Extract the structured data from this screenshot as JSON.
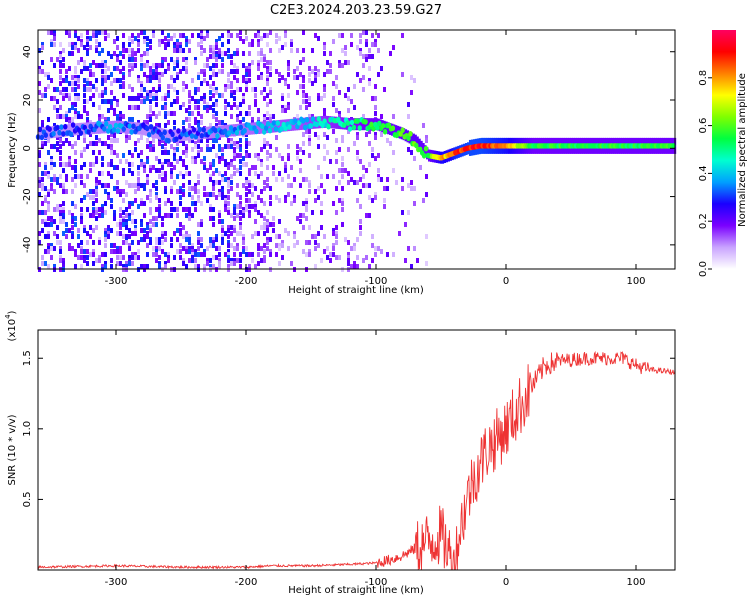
{
  "figure_title": "C2E3.2024.203.23.59.G27",
  "chart_data": [
    {
      "type": "heatmap",
      "title": "C2E3.2024.203.23.59.G27",
      "xlabel": "Height of straight line (km)",
      "ylabel": "Frequency (Hz)",
      "xlim": [
        -360,
        130
      ],
      "ylim": [
        -50,
        49
      ],
      "x_ticks": [
        -300,
        -200,
        -100,
        0,
        100
      ],
      "y_ticks": [
        40,
        20,
        0,
        -20,
        -40
      ],
      "x_tick_labels": [
        "-300",
        "-200",
        "-100",
        "0",
        "100"
      ],
      "y_tick_labels": [
        "40",
        "20",
        "0",
        "-20",
        "-40"
      ],
      "colorbar": {
        "label": "Normalized spectral amplitude",
        "range": [
          0,
          1
        ],
        "ticks": [
          0.0,
          0.2,
          0.4,
          0.6,
          0.8
        ],
        "tick_labels": [
          "0.0",
          "0.2",
          "0.4",
          "0.6",
          "0.8"
        ],
        "colormap": [
          "#ffffff",
          "#c9a3ff",
          "#7a00ff",
          "#1a00ff",
          "#00a0ff",
          "#00ffd0",
          "#00ff40",
          "#80ff00",
          "#ffff00",
          "#ff8000",
          "#ff0000",
          "#ff0060"
        ]
      },
      "ridge": {
        "x": [
          -360,
          -330,
          -300,
          -280,
          -260,
          -240,
          -220,
          -200,
          -180,
          -160,
          -140,
          -120,
          -100,
          -80,
          -70,
          -60,
          -50,
          -45,
          -40,
          -30,
          -20,
          -10,
          0,
          20,
          50,
          80,
          100,
          130
        ],
        "y": [
          6,
          8,
          9,
          8,
          5,
          6,
          7,
          8,
          9,
          10,
          11,
          10,
          10,
          6,
          3,
          -3,
          -4,
          -3,
          -2,
          0,
          1,
          1,
          1,
          1,
          1,
          1,
          1,
          1
        ],
        "amplitude": [
          0.3,
          0.3,
          0.35,
          0.3,
          0.3,
          0.3,
          0.35,
          0.35,
          0.4,
          0.4,
          0.45,
          0.5,
          0.55,
          0.6,
          0.6,
          0.55,
          0.8,
          0.75,
          0.85,
          0.9,
          0.9,
          0.85,
          0.8,
          0.55,
          0.55,
          0.55,
          0.55,
          0.55
        ]
      }
    },
    {
      "type": "line",
      "xlabel": "Height of straight line (km)",
      "ylabel": "SNR (10 * v/v)",
      "exponent_label": "(x10",
      "exponent_power": "4",
      "exponent_close": ")",
      "xlim": [
        -360,
        130
      ],
      "ylim": [
        0.0,
        1.7
      ],
      "x_ticks": [
        -300,
        -200,
        -100,
        0,
        100
      ],
      "y_ticks": [
        0.5,
        1.0,
        1.5
      ],
      "x_tick_labels": [
        "-300",
        "-200",
        "-100",
        "0",
        "100"
      ],
      "y_tick_labels": [
        "0.5",
        "1.0",
        "1.5"
      ],
      "series": [
        {
          "color": "#ee3333",
          "x": [
            -360,
            -300,
            -250,
            -200,
            -180,
            -150,
            -120,
            -100,
            -90,
            -80,
            -70,
            -60,
            -50,
            -45,
            -40,
            -35,
            -30,
            -25,
            -20,
            -15,
            -10,
            -5,
            0,
            10,
            20,
            30,
            40,
            60,
            80,
            90,
            100,
            110,
            130
          ],
          "y": [
            0.02,
            0.03,
            0.02,
            0.02,
            0.03,
            0.03,
            0.04,
            0.05,
            0.07,
            0.1,
            0.15,
            0.2,
            0.25,
            0.15,
            0.03,
            0.3,
            0.5,
            0.65,
            0.75,
            0.85,
            0.9,
            0.95,
            1.0,
            1.15,
            1.3,
            1.45,
            1.48,
            1.5,
            1.5,
            1.5,
            1.45,
            1.42,
            1.4
          ]
        }
      ]
    }
  ]
}
